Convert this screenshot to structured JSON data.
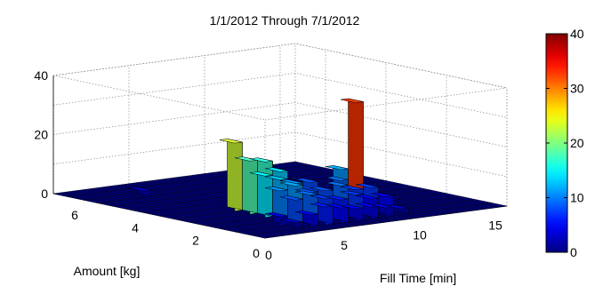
{
  "chart_data": {
    "type": "bar3d",
    "title": "1/1/2012 Through 7/1/2012",
    "xlabel": "Fill Time [min]",
    "ylabel": "Amount [kg]",
    "zlabel": "",
    "xlim": [
      0,
      16
    ],
    "ylim": [
      0,
      7
    ],
    "zlim": [
      0,
      40
    ],
    "x_ticks": [
      "0",
      "5",
      "10",
      "15"
    ],
    "y_ticks": [
      "0",
      "2",
      "4",
      "6"
    ],
    "z_ticks": [
      "0",
      "20",
      "40"
    ],
    "grid": true,
    "colormap": "jet",
    "colorbar": {
      "position": "right",
      "range": [
        0,
        40
      ],
      "ticks": [
        "0",
        "10",
        "20",
        "30",
        "40"
      ]
    },
    "bars": [
      {
        "x": 4,
        "y": 3.0,
        "z": 23
      },
      {
        "x": 4,
        "y": 2.5,
        "z": 18
      },
      {
        "x": 4,
        "y": 2.0,
        "z": 14
      },
      {
        "x": 4,
        "y": 1.5,
        "z": 10
      },
      {
        "x": 4,
        "y": 1.0,
        "z": 8
      },
      {
        "x": 5,
        "y": 2.0,
        "z": 12
      },
      {
        "x": 5,
        "y": 2.5,
        "z": 17
      },
      {
        "x": 5,
        "y": 1.5,
        "z": 11
      },
      {
        "x": 5,
        "y": 1.0,
        "z": 9
      },
      {
        "x": 5,
        "y": 0.5,
        "z": 6
      },
      {
        "x": 6,
        "y": 3.0,
        "z": 15
      },
      {
        "x": 6,
        "y": 2.5,
        "z": 13
      },
      {
        "x": 6,
        "y": 2.0,
        "z": 10
      },
      {
        "x": 6,
        "y": 1.5,
        "z": 8
      },
      {
        "x": 6,
        "y": 1.0,
        "z": 7
      },
      {
        "x": 6,
        "y": 0.5,
        "z": 5
      },
      {
        "x": 7,
        "y": 2.5,
        "z": 7
      },
      {
        "x": 7,
        "y": 1.5,
        "z": 8
      },
      {
        "x": 7,
        "y": 1.0,
        "z": 6
      },
      {
        "x": 7,
        "y": 0.5,
        "z": 4
      },
      {
        "x": 8,
        "y": 2.5,
        "z": 8
      },
      {
        "x": 8,
        "y": 1.5,
        "z": 9
      },
      {
        "x": 8,
        "y": 1.0,
        "z": 7
      },
      {
        "x": 8,
        "y": 0.5,
        "z": 4
      },
      {
        "x": 9,
        "y": 2.0,
        "z": 9
      },
      {
        "x": 9,
        "y": 1.5,
        "z": 7
      },
      {
        "x": 9,
        "y": 1.0,
        "z": 5
      },
      {
        "x": 10,
        "y": 1.5,
        "z": 7
      },
      {
        "x": 10,
        "y": 2.5,
        "z": 11
      },
      {
        "x": 10,
        "y": 1.0,
        "z": 5
      },
      {
        "x": 11,
        "y": 2.5,
        "z": 33
      },
      {
        "x": 3,
        "y": 5.5,
        "z": 2
      },
      {
        "x": 3,
        "y": 1.0,
        "z": 3
      },
      {
        "x": 3,
        "y": 0.5,
        "z": 2
      },
      {
        "x": 4,
        "y": 0.5,
        "z": 4
      },
      {
        "x": 9,
        "y": 0.5,
        "z": 3
      },
      {
        "x": 10,
        "y": 0.5,
        "z": 2
      },
      {
        "x": 8,
        "y": 3.5,
        "z": 2
      },
      {
        "x": 7,
        "y": 3.5,
        "z": 2
      }
    ]
  }
}
